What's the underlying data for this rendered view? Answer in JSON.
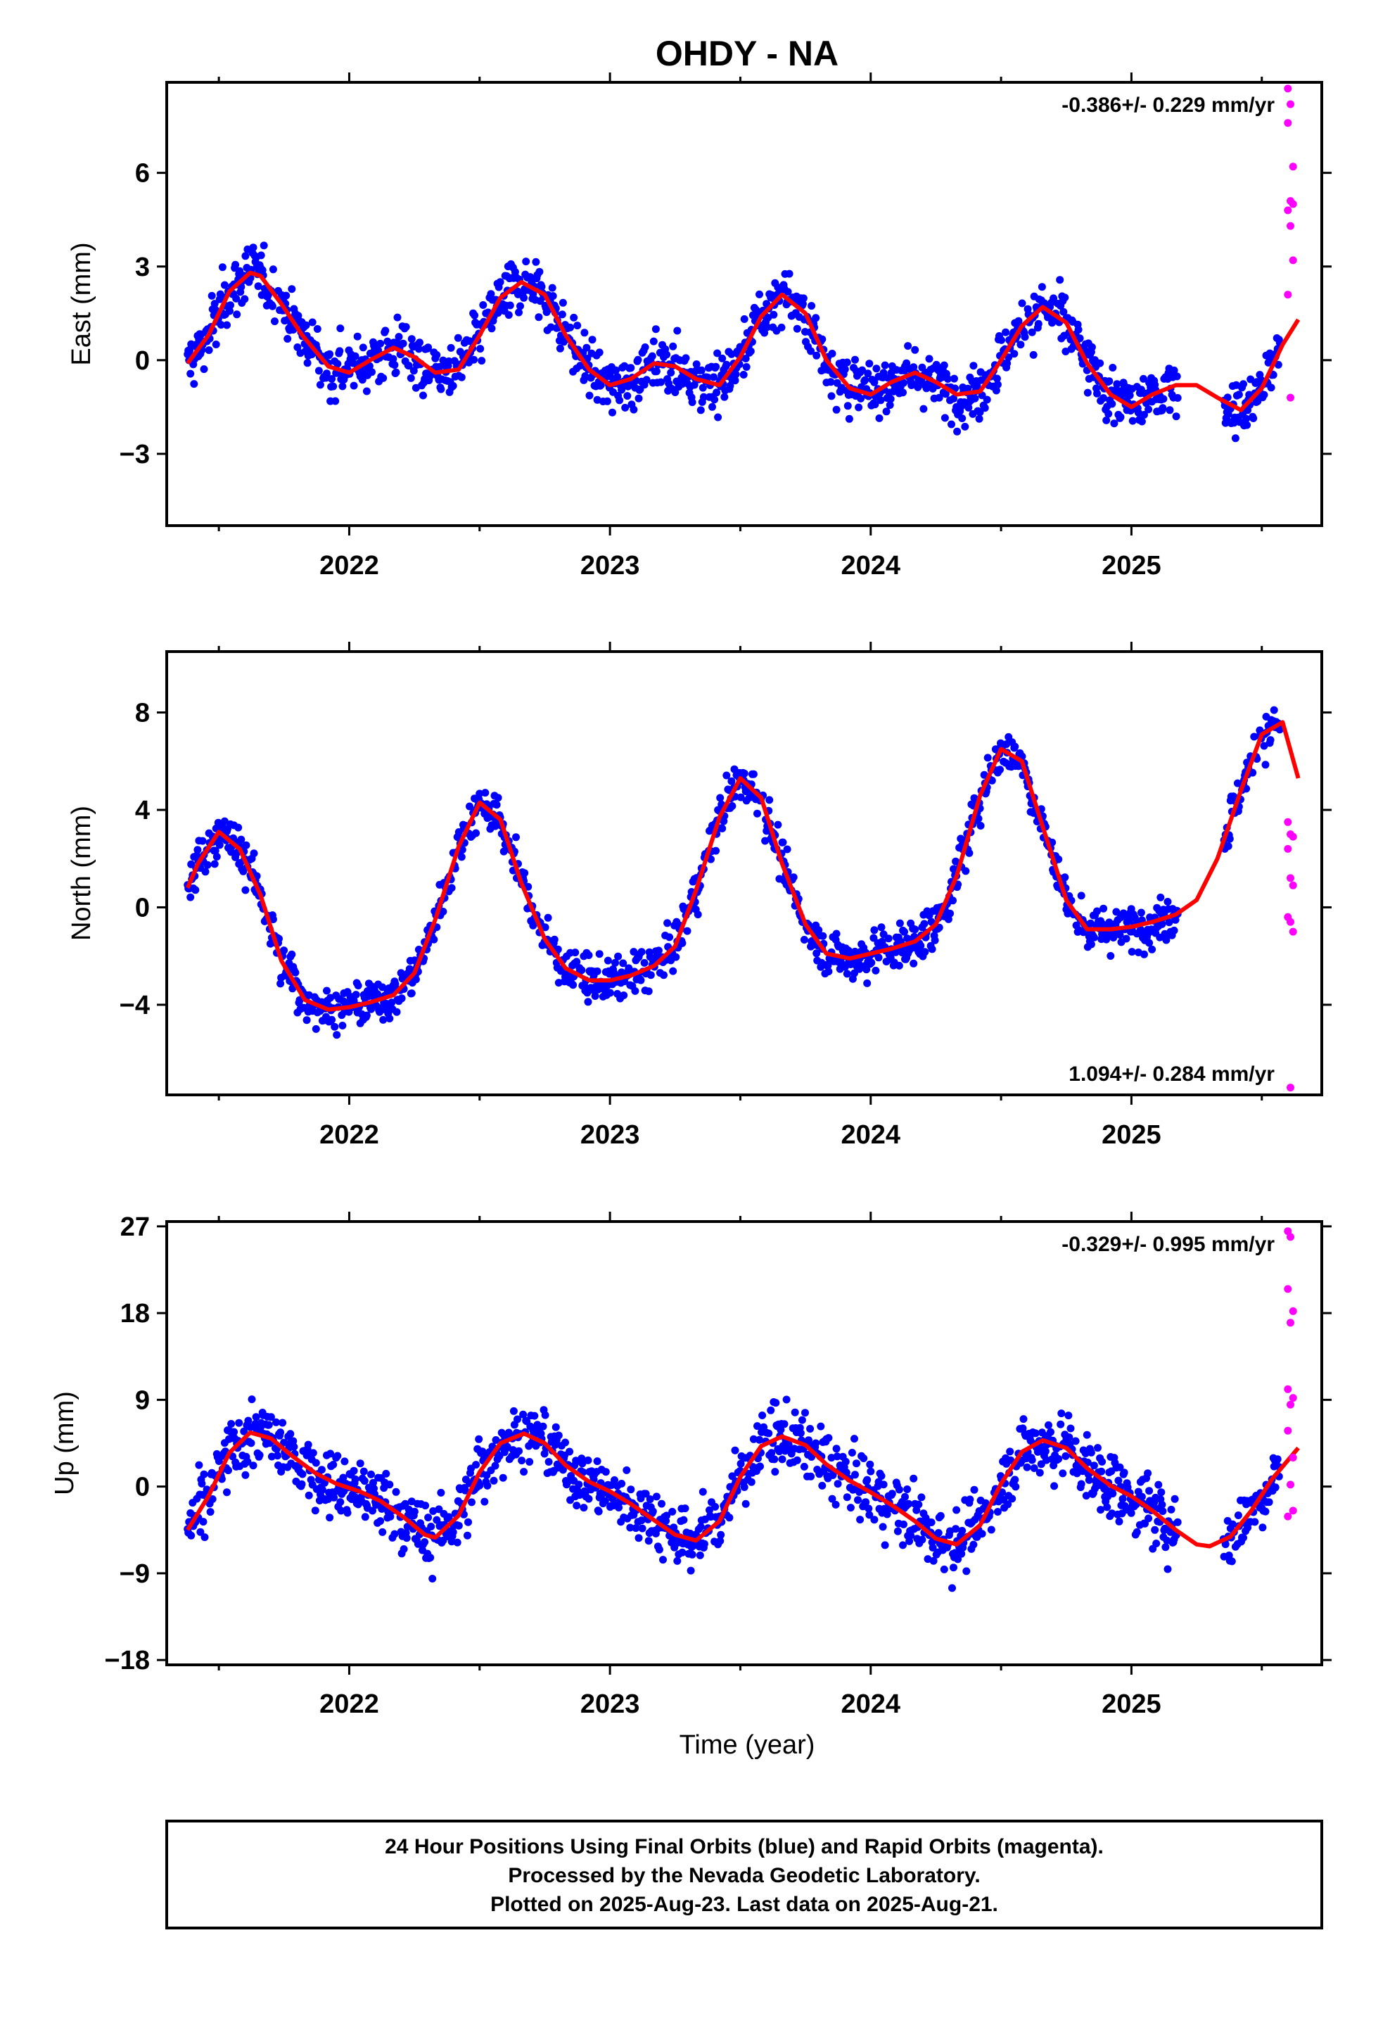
{
  "title": "OHDY - NA",
  "xlabel": "Time (year)",
  "colors": {
    "final": "#0000ff",
    "rapid": "#ff00ff",
    "model": "#ff0000",
    "frame": "#000000"
  },
  "footer": [
    "24 Hour Positions Using Final Orbits (blue) and Rapid Orbits (magenta).",
    "Processed by the Nevada Geodetic Laboratory.",
    "Plotted on 2025-Aug-23. Last data on 2025-Aug-21."
  ],
  "chart_data": [
    {
      "type": "scatter",
      "ylabel": "East (mm)",
      "rate": "-0.386+/- 0.229 mm/yr",
      "rate_position": "top-right",
      "xlim": [
        2021.3,
        2025.73
      ],
      "ylim": [
        -5.3,
        8.9
      ],
      "xticks": [
        2022,
        2023,
        2024,
        2025
      ],
      "yticks": [
        -3,
        0,
        3,
        6
      ],
      "ytick_labels": [
        "−3",
        "0",
        "3",
        "6"
      ],
      "data_start": 2021.38,
      "data_gap": [
        2025.18,
        2025.35
      ],
      "final_end": 2025.57,
      "series": [
        {
          "name": "model",
          "x": [
            2021.38,
            2021.46,
            2021.54,
            2021.62,
            2021.66,
            2021.74,
            2021.82,
            2021.92,
            2022.0,
            2022.08,
            2022.17,
            2022.25,
            2022.33,
            2022.42,
            2022.5,
            2022.58,
            2022.66,
            2022.75,
            2022.83,
            2022.92,
            2023.0,
            2023.08,
            2023.17,
            2023.25,
            2023.33,
            2023.42,
            2023.5,
            2023.58,
            2023.66,
            2023.75,
            2023.83,
            2023.92,
            2024.0,
            2024.08,
            2024.17,
            2024.25,
            2024.33,
            2024.42,
            2024.5,
            2024.58,
            2024.66,
            2024.75,
            2024.83,
            2024.92,
            2025.0,
            2025.08,
            2025.17,
            2025.25,
            2025.33,
            2025.42,
            2025.5,
            2025.58,
            2025.64
          ],
          "y": [
            -0.1,
            0.8,
            2.2,
            2.8,
            2.7,
            1.8,
            0.8,
            -0.2,
            -0.4,
            0.0,
            0.4,
            0.1,
            -0.4,
            -0.3,
            0.8,
            2.0,
            2.5,
            2.1,
            0.8,
            -0.3,
            -0.8,
            -0.6,
            -0.1,
            -0.2,
            -0.6,
            -0.8,
            0.1,
            1.4,
            2.1,
            1.5,
            0.0,
            -0.9,
            -1.1,
            -0.7,
            -0.4,
            -0.7,
            -1.1,
            -1.0,
            0.0,
            1.1,
            1.7,
            1.2,
            -0.1,
            -1.1,
            -1.5,
            -1.1,
            -0.8,
            -0.8,
            -1.2,
            -1.6,
            -0.9,
            0.5,
            1.3
          ]
        },
        {
          "name": "rapid",
          "x": [
            2025.6,
            2025.61,
            2025.6,
            2025.62,
            2025.61,
            2025.62,
            2025.6,
            2025.61,
            2025.62,
            2025.6,
            2025.61
          ],
          "y": [
            8.7,
            8.2,
            7.6,
            6.2,
            5.1,
            5.0,
            4.8,
            4.3,
            3.2,
            2.1,
            -1.2
          ]
        }
      ]
    },
    {
      "type": "scatter",
      "ylabel": "North (mm)",
      "rate": "1.094+/- 0.284 mm/yr",
      "rate_position": "bottom-right",
      "xlim": [
        2021.3,
        2025.73
      ],
      "ylim": [
        -7.7,
        10.5
      ],
      "xticks": [
        2022,
        2023,
        2024,
        2025
      ],
      "yticks": [
        -4,
        0,
        4,
        8
      ],
      "ytick_labels": [
        "−4",
        "0",
        "4",
        "8"
      ],
      "data_start": 2021.38,
      "data_gap": [
        2025.18,
        2025.35
      ],
      "final_end": 2025.57,
      "series": [
        {
          "name": "model",
          "x": [
            2021.38,
            2021.42,
            2021.5,
            2021.58,
            2021.66,
            2021.74,
            2021.83,
            2021.92,
            2022.0,
            2022.08,
            2022.17,
            2022.25,
            2022.33,
            2022.42,
            2022.5,
            2022.58,
            2022.66,
            2022.75,
            2022.83,
            2022.92,
            2023.0,
            2023.08,
            2023.17,
            2023.25,
            2023.33,
            2023.42,
            2023.5,
            2023.58,
            2023.66,
            2023.75,
            2023.83,
            2023.92,
            2024.0,
            2024.08,
            2024.17,
            2024.25,
            2024.33,
            2024.42,
            2024.5,
            2024.58,
            2024.66,
            2024.75,
            2024.83,
            2024.92,
            2025.0,
            2025.08,
            2025.17,
            2025.25,
            2025.33,
            2025.42,
            2025.5,
            2025.58,
            2025.64
          ],
          "y": [
            0.8,
            1.8,
            3.1,
            2.4,
            0.5,
            -2.2,
            -3.8,
            -4.2,
            -4.1,
            -3.9,
            -3.6,
            -2.7,
            -0.5,
            2.5,
            4.3,
            3.6,
            1.0,
            -1.3,
            -2.5,
            -3.0,
            -3.0,
            -2.8,
            -2.4,
            -1.6,
            0.7,
            3.7,
            5.3,
            4.5,
            1.8,
            -0.7,
            -1.9,
            -2.1,
            -1.9,
            -1.7,
            -1.4,
            -0.7,
            1.3,
            4.6,
            6.5,
            6.0,
            3.3,
            0.3,
            -0.9,
            -0.9,
            -0.8,
            -0.6,
            -0.3,
            0.3,
            2.0,
            4.8,
            7.1,
            7.6,
            5.3
          ]
        },
        {
          "name": "rapid",
          "x": [
            2025.6,
            2025.61,
            2025.62,
            2025.6,
            2025.61,
            2025.62,
            2025.6,
            2025.61,
            2025.62,
            2025.61
          ],
          "y": [
            3.5,
            3.0,
            2.9,
            2.4,
            1.2,
            0.9,
            -0.4,
            -0.6,
            -1.0,
            -7.4
          ]
        }
      ]
    },
    {
      "type": "scatter",
      "ylabel": "Up (mm)",
      "rate": "-0.329+/- 0.995 mm/yr",
      "rate_position": "top-right",
      "xlim": [
        2021.3,
        2025.73
      ],
      "ylim": [
        -18.5,
        27.5
      ],
      "xticks": [
        2022,
        2023,
        2024,
        2025
      ],
      "yticks": [
        -18,
        -9,
        0,
        9,
        18,
        27
      ],
      "ytick_labels": [
        "−18",
        "−9",
        "0",
        "9",
        "18",
        "27"
      ],
      "data_start": 2021.38,
      "data_gap": [
        2025.18,
        2025.35
      ],
      "final_end": 2025.57,
      "series": [
        {
          "name": "model",
          "x": [
            2021.38,
            2021.46,
            2021.54,
            2021.62,
            2021.7,
            2021.78,
            2021.87,
            2021.95,
            2022.04,
            2022.12,
            2022.21,
            2022.29,
            2022.33,
            2022.42,
            2022.5,
            2022.58,
            2022.67,
            2022.75,
            2022.83,
            2022.92,
            2023.0,
            2023.08,
            2023.17,
            2023.25,
            2023.33,
            2023.42,
            2023.5,
            2023.58,
            2023.66,
            2023.75,
            2023.83,
            2023.92,
            2024.0,
            2024.08,
            2024.17,
            2024.25,
            2024.33,
            2024.42,
            2024.5,
            2024.58,
            2024.66,
            2024.75,
            2024.83,
            2024.92,
            2025.0,
            2025.08,
            2025.17,
            2025.25,
            2025.3,
            2025.38,
            2025.46,
            2025.54,
            2025.64
          ],
          "y": [
            -4.5,
            -1.0,
            3.5,
            5.6,
            5.0,
            3.2,
            1.4,
            0.3,
            -0.5,
            -1.5,
            -3.2,
            -5.0,
            -5.3,
            -3.0,
            1.5,
            4.5,
            5.5,
            4.5,
            2.2,
            0.5,
            -0.5,
            -1.8,
            -3.5,
            -5.0,
            -5.6,
            -3.6,
            1.0,
            4.2,
            5.2,
            4.3,
            2.3,
            0.6,
            -0.6,
            -1.9,
            -3.6,
            -5.4,
            -6.0,
            -4.0,
            0.3,
            3.6,
            4.8,
            4.0,
            1.9,
            0.1,
            -1.0,
            -2.5,
            -4.5,
            -6.0,
            -6.2,
            -5.2,
            -2.5,
            0.8,
            4.0
          ]
        },
        {
          "name": "rapid",
          "x": [
            2025.6,
            2025.61,
            2025.6,
            2025.62,
            2025.61,
            2025.6,
            2025.62,
            2025.61,
            2025.6,
            2025.62,
            2025.61,
            2025.62,
            2025.6
          ],
          "y": [
            26.5,
            25.9,
            20.5,
            18.2,
            17.0,
            10.1,
            9.2,
            8.5,
            5.8,
            3.0,
            0.2,
            -2.5,
            -3.1
          ]
        }
      ]
    }
  ]
}
